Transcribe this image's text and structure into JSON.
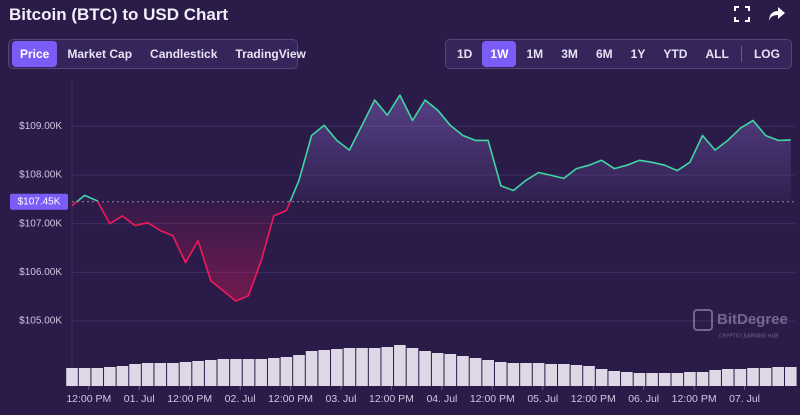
{
  "header": {
    "title": "Bitcoin (BTC) to USD Chart"
  },
  "chart_tabs": {
    "items": [
      "Price",
      "Market Cap",
      "Candlestick",
      "TradingView"
    ],
    "active": 0
  },
  "range_tabs": {
    "items": [
      "1D",
      "1W",
      "1M",
      "3M",
      "6M",
      "1Y",
      "YTD",
      "ALL"
    ],
    "active": 1,
    "scale_toggle": "LOG"
  },
  "watermark": {
    "name": "BitDegree",
    "tagline": "CRYPTO LEARNING HUB"
  },
  "chart_data": {
    "type": "baseline-area",
    "x": [
      0,
      3,
      6,
      9,
      12,
      15,
      18,
      21,
      24,
      27,
      30,
      33,
      36,
      39,
      42,
      45,
      48,
      51,
      54,
      57,
      60,
      63,
      66,
      69,
      72,
      75,
      78,
      81,
      84,
      87,
      90,
      93,
      96,
      99,
      102,
      105,
      108,
      111,
      114,
      117,
      120,
      123,
      126,
      129,
      132,
      135,
      138,
      141,
      144,
      147,
      150,
      153,
      156,
      159,
      162,
      165,
      168,
      171
    ],
    "values": [
      107370,
      107580,
      107470,
      107000,
      107160,
      106960,
      107020,
      106860,
      106750,
      106200,
      106650,
      105830,
      105620,
      105410,
      105520,
      106240,
      107160,
      107270,
      107890,
      108810,
      109020,
      108710,
      108510,
      109020,
      109540,
      109230,
      109640,
      109120,
      109540,
      109330,
      109020,
      108810,
      108710,
      108710,
      107780,
      107680,
      107890,
      108050,
      107990,
      107930,
      108130,
      108200,
      108300,
      108130,
      108200,
      108300,
      108260,
      108200,
      108090,
      108260,
      108810,
      108510,
      108710,
      108960,
      109120,
      108810,
      108710,
      108720
    ],
    "baseline": {
      "value": 107450,
      "label": "$107.45K"
    },
    "colors": {
      "up": "#3fd6a4",
      "down": "#f0195c"
    },
    "xlim": [
      0,
      172
    ],
    "ylim": [
      104200,
      109950
    ],
    "yticks": [
      {
        "value": 105000,
        "label": "$105.00K"
      },
      {
        "value": 106000,
        "label": "$106.00K"
      },
      {
        "value": 107000,
        "label": "$107.00K"
      },
      {
        "value": 108000,
        "label": "$108.00K"
      },
      {
        "value": 109000,
        "label": "$109.00K"
      }
    ],
    "xticks": [
      {
        "value": 4,
        "label": "12:00 PM"
      },
      {
        "value": 16,
        "label": "01. Jul"
      },
      {
        "value": 28,
        "label": "12:00 PM"
      },
      {
        "value": 40,
        "label": "02. Jul"
      },
      {
        "value": 52,
        "label": "12:00 PM"
      },
      {
        "value": 64,
        "label": "03. Jul"
      },
      {
        "value": 76,
        "label": "12:00 PM"
      },
      {
        "value": 88,
        "label": "04. Jul"
      },
      {
        "value": 100,
        "label": "12:00 PM"
      },
      {
        "value": 112,
        "label": "05. Jul"
      },
      {
        "value": 124,
        "label": "12:00 PM"
      },
      {
        "value": 136,
        "label": "06. Jul"
      },
      {
        "value": 148,
        "label": "12:00 PM"
      },
      {
        "value": 160,
        "label": "07. Jul"
      }
    ],
    "grid": true,
    "volume": {
      "values": [
        18,
        18,
        18,
        19,
        20,
        22,
        23,
        23,
        23,
        24,
        25,
        26,
        27,
        27,
        27,
        27,
        28,
        29,
        31,
        35,
        36,
        37,
        38,
        38,
        38,
        39,
        41,
        38,
        35,
        33,
        32,
        30,
        28,
        26,
        24,
        23,
        23,
        23,
        22,
        22,
        21,
        20,
        17,
        15,
        14,
        13,
        13,
        13,
        13,
        14,
        14,
        16,
        17,
        17,
        18,
        18,
        19,
        19
      ],
      "ylim": [
        0,
        60
      ],
      "color": "#ddd7e6"
    }
  }
}
